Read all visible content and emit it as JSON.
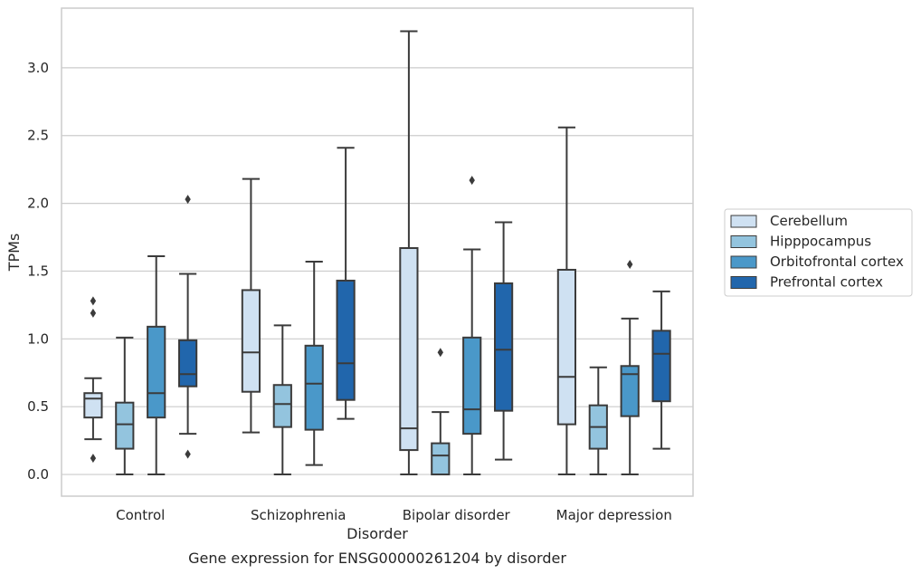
{
  "chart_data": {
    "type": "box",
    "title": "",
    "caption": "Gene expression for ENSG00000261204 by disorder",
    "xlabel": "Disorder",
    "ylabel": "TPMs",
    "ylim": [
      -0.16,
      3.44
    ],
    "yticks": [
      0.0,
      0.5,
      1.0,
      1.5,
      2.0,
      2.5,
      3.0
    ],
    "ytick_labels": [
      "0.0",
      "0.5",
      "1.0",
      "1.5",
      "2.0",
      "2.5",
      "3.0"
    ],
    "grid": "horizontal",
    "legend_position": "right",
    "categories": [
      "Control",
      "Schizophrenia",
      "Bipolar disorder",
      "Major depression"
    ],
    "series": [
      {
        "name": "Cerebellum",
        "color": "#cfe1f2",
        "boxes": [
          {
            "whisker_low": 0.26,
            "q1": 0.42,
            "median": 0.56,
            "q3": 0.6,
            "whisker_high": 0.71,
            "outliers": [
              1.28,
              1.19,
              0.12
            ]
          },
          {
            "whisker_low": 0.31,
            "q1": 0.61,
            "median": 0.9,
            "q3": 1.36,
            "whisker_high": 2.18,
            "outliers": []
          },
          {
            "whisker_low": 0.0,
            "q1": 0.18,
            "median": 0.34,
            "q3": 1.67,
            "whisker_high": 3.27,
            "outliers": []
          },
          {
            "whisker_low": 0.0,
            "q1": 0.37,
            "median": 0.72,
            "q3": 1.51,
            "whisker_high": 2.56,
            "outliers": []
          }
        ]
      },
      {
        "name": "Hipppocampus",
        "color": "#93c4de",
        "boxes": [
          {
            "whisker_low": 0.0,
            "q1": 0.19,
            "median": 0.37,
            "q3": 0.53,
            "whisker_high": 1.01,
            "outliers": []
          },
          {
            "whisker_low": 0.0,
            "q1": 0.35,
            "median": 0.52,
            "q3": 0.66,
            "whisker_high": 1.1,
            "outliers": []
          },
          {
            "whisker_low": 0.0,
            "q1": 0.0,
            "median": 0.14,
            "q3": 0.23,
            "whisker_high": 0.46,
            "outliers": [
              0.9
            ]
          },
          {
            "whisker_low": 0.0,
            "q1": 0.19,
            "median": 0.35,
            "q3": 0.51,
            "whisker_high": 0.79,
            "outliers": []
          }
        ]
      },
      {
        "name": "Orbitofrontal cortex",
        "color": "#4a98c9",
        "boxes": [
          {
            "whisker_low": 0.0,
            "q1": 0.42,
            "median": 0.6,
            "q3": 1.09,
            "whisker_high": 1.61,
            "outliers": []
          },
          {
            "whisker_low": 0.07,
            "q1": 0.33,
            "median": 0.67,
            "q3": 0.95,
            "whisker_high": 1.57,
            "outliers": []
          },
          {
            "whisker_low": 0.0,
            "q1": 0.3,
            "median": 0.48,
            "q3": 1.01,
            "whisker_high": 1.66,
            "outliers": [
              2.17
            ]
          },
          {
            "whisker_low": 0.0,
            "q1": 0.43,
            "median": 0.74,
            "q3": 0.8,
            "whisker_high": 1.15,
            "outliers": [
              1.55
            ]
          }
        ]
      },
      {
        "name": "Prefrontal cortex",
        "color": "#2166ac",
        "boxes": [
          {
            "whisker_low": 0.3,
            "q1": 0.65,
            "median": 0.74,
            "q3": 0.99,
            "whisker_high": 1.48,
            "outliers": [
              2.03,
              0.15
            ]
          },
          {
            "whisker_low": 0.41,
            "q1": 0.55,
            "median": 0.82,
            "q3": 1.43,
            "whisker_high": 2.41,
            "outliers": []
          },
          {
            "whisker_low": 0.11,
            "q1": 0.47,
            "median": 0.92,
            "q3": 1.41,
            "whisker_high": 1.86,
            "outliers": []
          },
          {
            "whisker_low": 0.19,
            "q1": 0.54,
            "median": 0.89,
            "q3": 1.06,
            "whisker_high": 1.35,
            "outliers": []
          }
        ]
      }
    ]
  }
}
